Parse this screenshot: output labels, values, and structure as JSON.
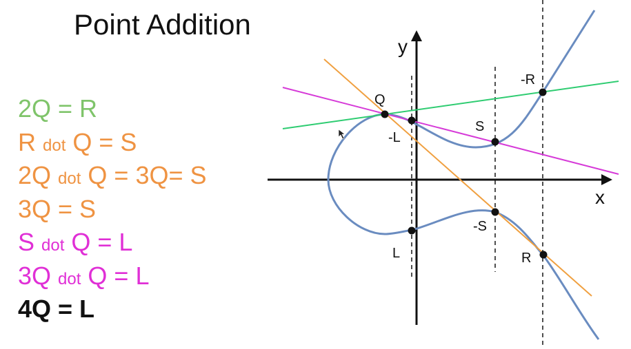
{
  "title": "Point Addition",
  "equations": [
    {
      "parts": [
        {
          "t": "2Q = R"
        }
      ],
      "color": "#7fc46a",
      "bold": false
    },
    {
      "parts": [
        {
          "t": "R "
        },
        {
          "t": "dot",
          "small": true
        },
        {
          "t": " Q = S"
        }
      ],
      "color": "#ef9342",
      "bold": false
    },
    {
      "parts": [
        {
          "t": "2Q "
        },
        {
          "t": "dot",
          "small": true
        },
        {
          "t": " Q = 3Q= S"
        }
      ],
      "color": "#ef9342",
      "bold": false
    },
    {
      "parts": [
        {
          "t": "3Q = S"
        }
      ],
      "color": "#ef9342",
      "bold": false
    },
    {
      "parts": [
        {
          "t": "S "
        },
        {
          "t": "dot",
          "small": true
        },
        {
          "t": " Q = L"
        }
      ],
      "color": "#e02fd6",
      "bold": false
    },
    {
      "parts": [
        {
          "t": "3Q "
        },
        {
          "t": "dot",
          "small": true
        },
        {
          "t": " Q = L"
        }
      ],
      "color": "#e02fd6",
      "bold": false
    },
    {
      "parts": [
        {
          "t": "4Q = L"
        }
      ],
      "color": "#111111",
      "bold": true
    }
  ],
  "graph": {
    "x_axis_label": "x",
    "y_axis_label": "y",
    "point_labels": {
      "Q": "Q",
      "negL": "-L",
      "S": "S",
      "negR": "-R",
      "negS": "-S",
      "L": "L",
      "R": "R"
    },
    "colors": {
      "curve": "#6a8cc0",
      "tangent_line": "#2ecc71",
      "orange_line": "#f0a040",
      "magenta_line": "#d63ad8",
      "axes": "#111111",
      "points": "#111111"
    }
  }
}
